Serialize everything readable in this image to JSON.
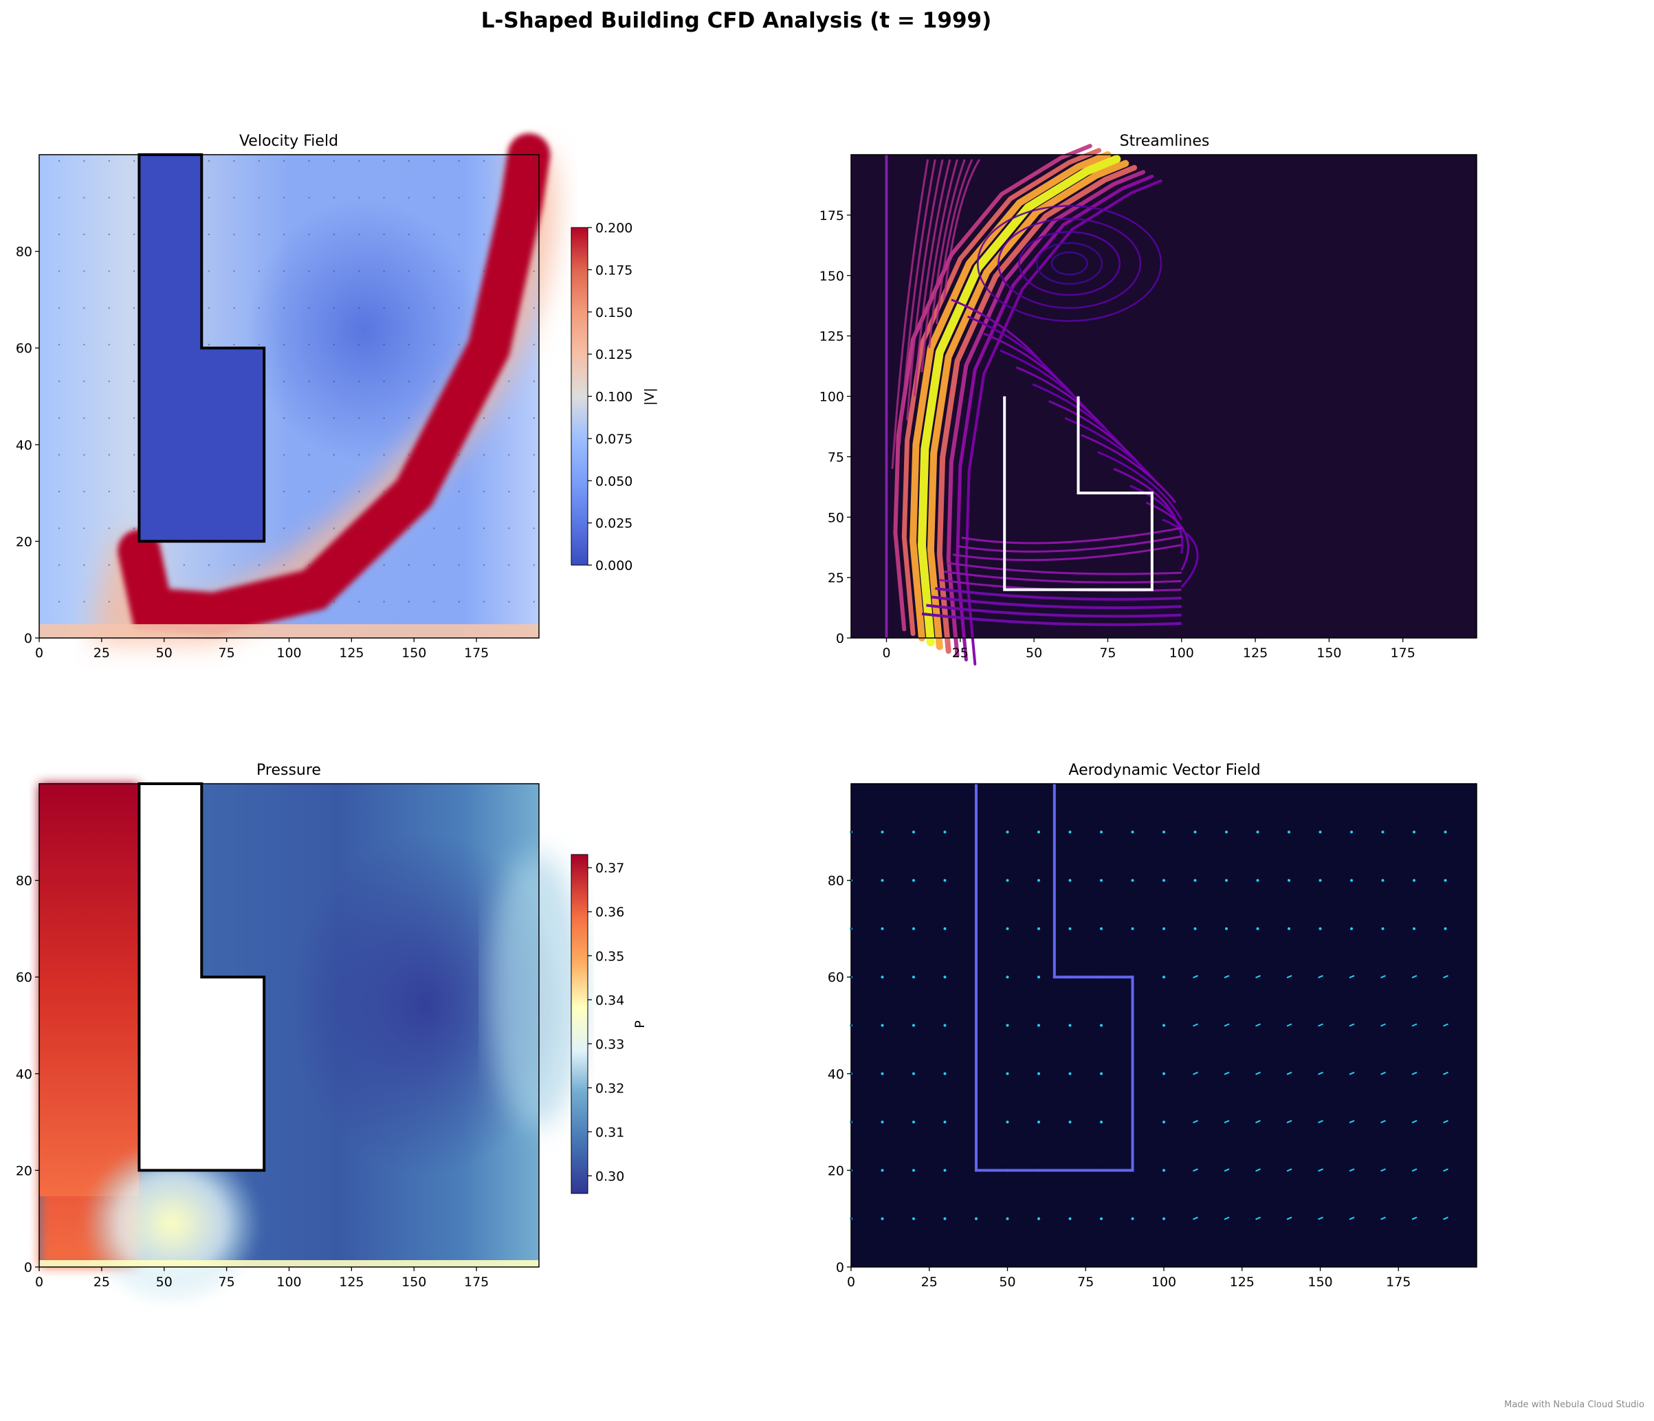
{
  "figure": {
    "title": "L-Shaped Building CFD Analysis  (t = 1999)",
    "watermark": "Made with Nebula Cloud Studio"
  },
  "chart_data": [
    {
      "type": "heatmap",
      "title": "Velocity Field",
      "field": "velocity magnitude |V|",
      "colormap": "coolwarm",
      "xlim": [
        0,
        200
      ],
      "ylim": [
        0,
        100
      ],
      "xticks": [
        0,
        25,
        50,
        75,
        100,
        125,
        150,
        175
      ],
      "yticks": [
        0,
        20,
        40,
        60,
        80
      ],
      "colorbar": {
        "label": "|V|",
        "range": [
          0.0,
          0.2
        ],
        "ticks": [
          "0.000",
          "0.025",
          "0.050",
          "0.075",
          "0.100",
          "0.125",
          "0.150",
          "0.175",
          "0.200"
        ]
      },
      "building_outline": [
        [
          40,
          20
        ],
        [
          40,
          100
        ],
        [
          65,
          100
        ],
        [
          65,
          60
        ],
        [
          90,
          60
        ],
        [
          90,
          20
        ],
        [
          40,
          20
        ]
      ],
      "building_color": "#3b4cc0",
      "high_speed_band": {
        "value": ">=0.2",
        "path": [
          [
            40,
            18
          ],
          [
            45,
            6
          ],
          [
            70,
            5
          ],
          [
            110,
            10
          ],
          [
            150,
            30
          ],
          [
            180,
            60
          ],
          [
            193,
            90
          ],
          [
            196,
            100
          ]
        ]
      },
      "recirculation_center": [
        130,
        65
      ]
    },
    {
      "type": "line",
      "title": "Streamlines",
      "colormap": "plasma",
      "background": "#1a0a2e",
      "xlim": [
        -12,
        200
      ],
      "ylim": [
        0,
        200
      ],
      "xticks": [
        0,
        25,
        50,
        75,
        100,
        125,
        150,
        175
      ],
      "yticks": [
        0,
        25,
        50,
        75,
        100,
        125,
        150,
        175
      ],
      "building_outline": [
        [
          40,
          100
        ],
        [
          40,
          20
        ],
        [
          90,
          20
        ],
        [
          90,
          60
        ],
        [
          65,
          60
        ],
        [
          65,
          100
        ]
      ],
      "building_color": "#ffffff",
      "jet_core": [
        [
          12,
          0
        ],
        [
          9,
          40
        ],
        [
          10,
          80
        ],
        [
          15,
          120
        ],
        [
          28,
          155
        ],
        [
          45,
          180
        ],
        [
          65,
          195
        ],
        [
          75,
          200
        ]
      ],
      "vortex_center": [
        62,
        155
      ],
      "streamline_extent_x": [
        0,
        100
      ]
    },
    {
      "type": "heatmap",
      "title": "Pressure",
      "field": "pressure P",
      "colormap": "RdYlBu_r",
      "xlim": [
        0,
        200
      ],
      "ylim": [
        0,
        100
      ],
      "xticks": [
        0,
        25,
        50,
        75,
        100,
        125,
        150,
        175
      ],
      "yticks": [
        0,
        20,
        40,
        60,
        80
      ],
      "colorbar": {
        "label": "P",
        "range": [
          0.296,
          0.373
        ],
        "ticks": [
          "0.30",
          "0.31",
          "0.32",
          "0.33",
          "0.34",
          "0.35",
          "0.36",
          "0.37"
        ]
      },
      "building_outline": [
        [
          40,
          20
        ],
        [
          40,
          100
        ],
        [
          65,
          100
        ],
        [
          65,
          60
        ],
        [
          90,
          60
        ],
        [
          90,
          20
        ],
        [
          40,
          20
        ]
      ],
      "building_color": "#ffffff",
      "high_pressure_region": {
        "x": [
          0,
          40
        ],
        "value": 0.37
      },
      "low_pressure_center": [
        155,
        55
      ]
    },
    {
      "type": "scatter",
      "title": "Aerodynamic Vector Field",
      "background": "#0a0a2e",
      "arrow_color": "#22d3ee",
      "xlim": [
        0,
        200
      ],
      "ylim": [
        0,
        100
      ],
      "xticks": [
        0,
        25,
        50,
        75,
        100,
        125,
        150,
        175
      ],
      "yticks": [
        0,
        20,
        40,
        60,
        80
      ],
      "grid_x": [
        0,
        10,
        20,
        30,
        40,
        50,
        60,
        70,
        80,
        90,
        100,
        110,
        120,
        130,
        140,
        150,
        160,
        170,
        180,
        190
      ],
      "grid_y": [
        10,
        20,
        30,
        40,
        50,
        60,
        70,
        80,
        90
      ],
      "building_outline": [
        [
          40,
          100
        ],
        [
          40,
          20
        ],
        [
          90,
          20
        ],
        [
          90,
          60
        ],
        [
          65,
          60
        ],
        [
          65,
          100
        ]
      ],
      "building_color": "#6366f1"
    }
  ]
}
